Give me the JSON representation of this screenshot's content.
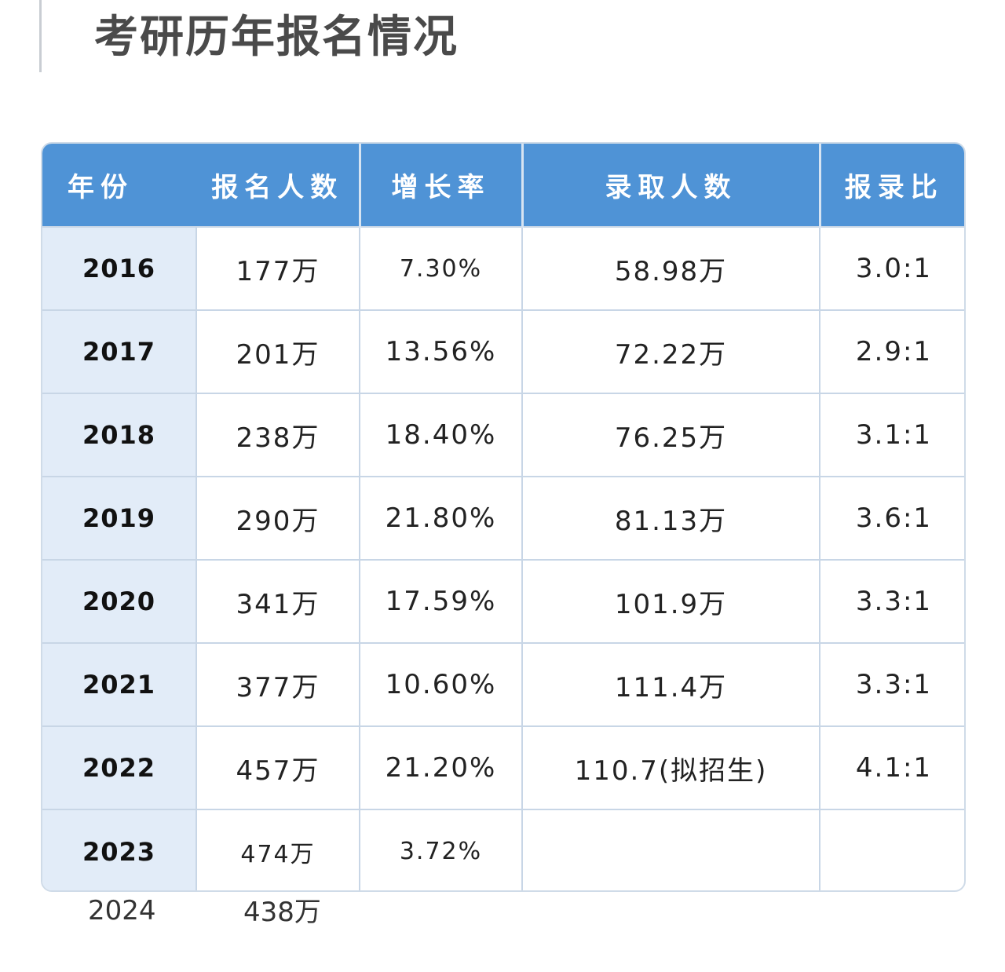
{
  "title": "考研历年报名情况",
  "table": {
    "headers": {
      "year": "年份",
      "applicants": "报名人数",
      "growth": "增长率",
      "admitted": "录取人数",
      "ratio": "报录比"
    },
    "rows": [
      {
        "year": "2016",
        "applicants": "177万",
        "growth": "7.30%",
        "admitted": "58.98万",
        "ratio": "3.0:1"
      },
      {
        "year": "2017",
        "applicants": "201万",
        "growth": "13.56%",
        "admitted": "72.22万",
        "ratio": "2.9:1"
      },
      {
        "year": "2018",
        "applicants": "238万",
        "growth": "18.40%",
        "admitted": "76.25万",
        "ratio": "3.1:1"
      },
      {
        "year": "2019",
        "applicants": "290万",
        "growth": "21.80%",
        "admitted": "81.13万",
        "ratio": "3.6:1"
      },
      {
        "year": "2020",
        "applicants": "341万",
        "growth": "17.59%",
        "admitted": "101.9万",
        "ratio": "3.3:1"
      },
      {
        "year": "2021",
        "applicants": "377万",
        "growth": "10.60%",
        "admitted": "111.4万",
        "ratio": "3.3:1"
      },
      {
        "year": "2022",
        "applicants": "457万",
        "growth": "21.20%",
        "admitted": "110.7(拟招生)",
        "ratio": "4.1:1"
      },
      {
        "year": "2023",
        "applicants": "474万",
        "growth": "3.72%",
        "admitted": "",
        "ratio": ""
      }
    ]
  },
  "extra_row": {
    "year": "2024",
    "applicants": "438万"
  },
  "colors": {
    "header_bg": "#4f93d6",
    "year_col_bg": "#e2ecf8",
    "grid": "#c8d6e6"
  }
}
